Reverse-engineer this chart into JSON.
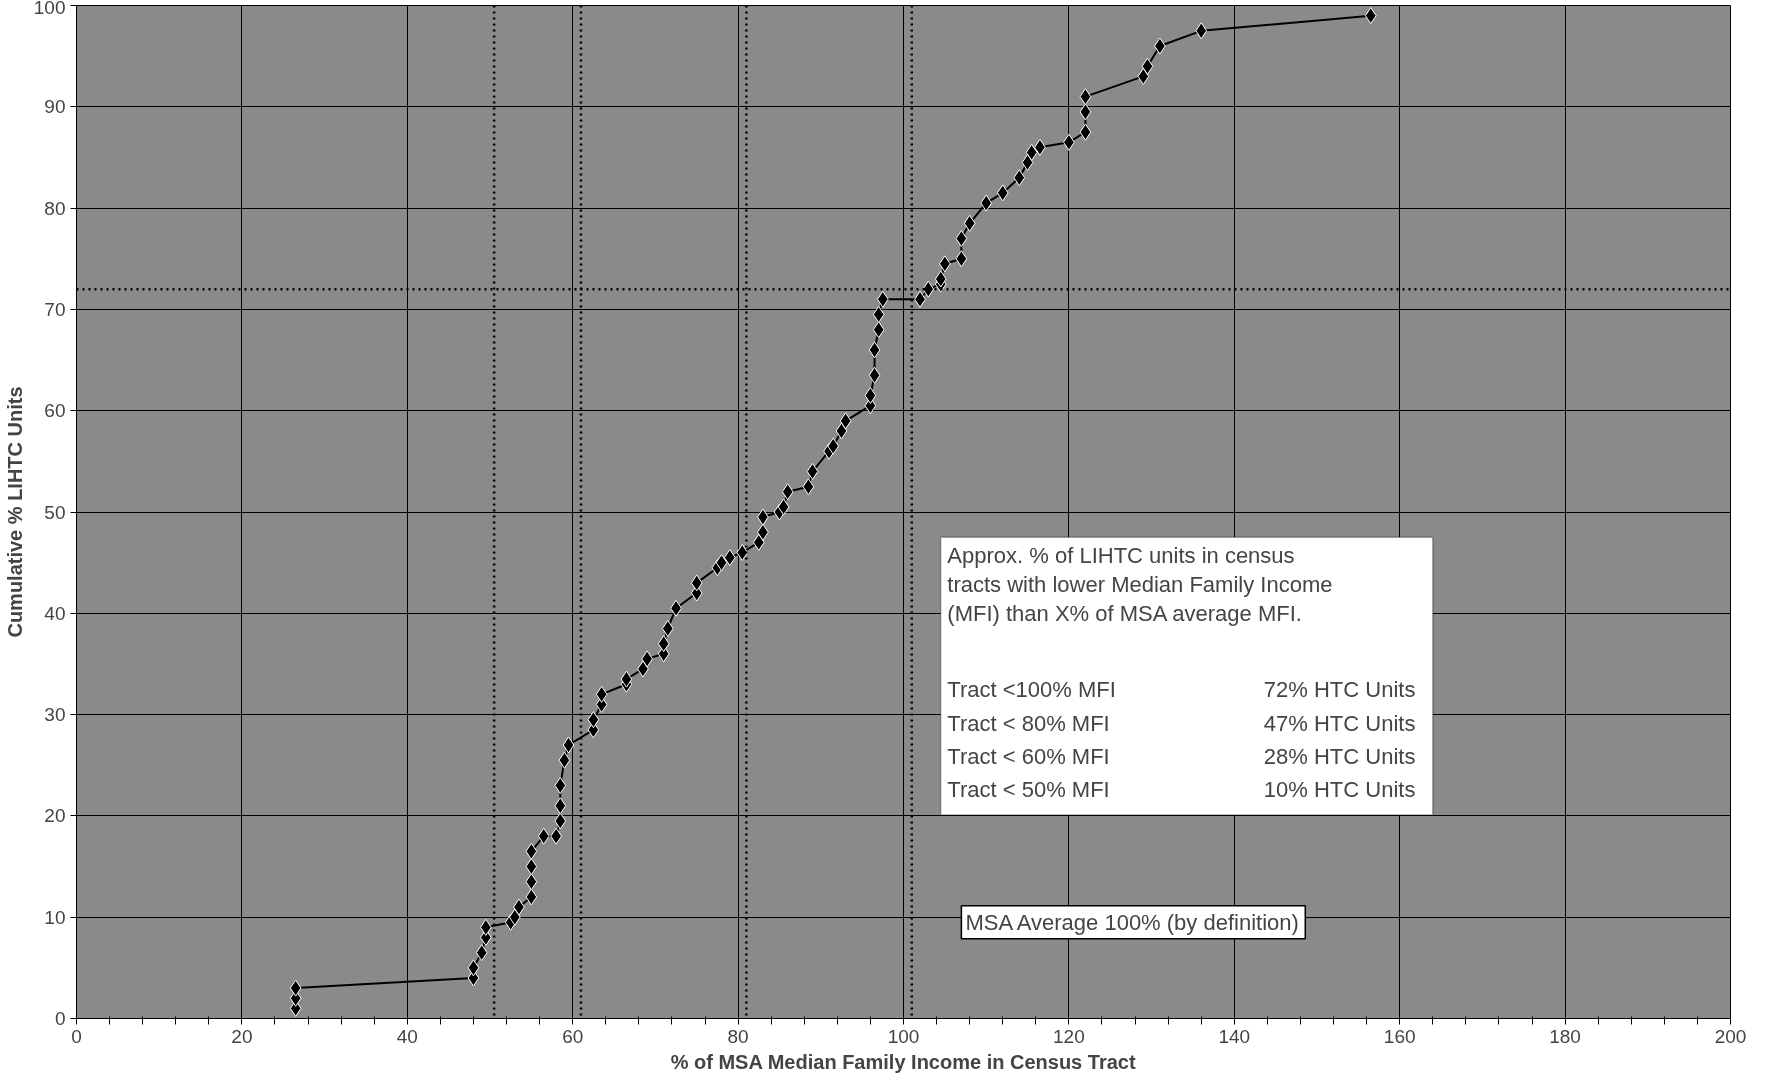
{
  "chart_data": {
    "type": "line",
    "xlabel": "% of MSA Median Family Income in Census Tract",
    "ylabel": "Cumulative % LIHTC Units",
    "x": [
      26.5,
      26.5,
      26.5,
      48,
      48,
      49,
      49.5,
      49.5,
      52.5,
      53,
      53.5,
      55,
      55,
      55,
      55,
      56.5,
      58,
      58.5,
      58.5,
      58.5,
      59,
      59.5,
      62.5,
      62.5,
      63.5,
      63.5,
      66.5,
      66.5,
      68.5,
      69,
      71,
      71,
      71.5,
      72.5,
      75,
      75,
      77.5,
      78,
      79,
      80.5,
      82.5,
      83,
      83,
      85,
      85.5,
      86,
      88.5,
      89,
      91,
      91.5,
      92.5,
      93,
      96,
      96,
      96.5,
      96.5,
      97,
      97,
      97.5,
      102,
      103,
      104.5,
      104.5,
      105,
      107,
      107,
      108,
      110,
      112,
      114,
      115,
      115.5,
      116.5,
      120,
      122,
      122,
      122,
      129,
      129.5,
      131,
      136,
      156.5
    ],
    "series": [
      {
        "color": "#000000",
        "values": [
          1,
          2,
          3,
          4,
          5,
          6.5,
          8,
          9,
          9.5,
          10,
          11,
          12,
          13.5,
          15,
          16.5,
          18,
          18,
          19.5,
          21,
          23,
          25.5,
          27,
          28.5,
          29.5,
          31,
          32,
          33,
          33.5,
          34.5,
          35.5,
          36,
          37,
          38.5,
          40.5,
          42,
          43,
          44.5,
          45,
          45.5,
          46,
          47,
          48,
          49.5,
          50,
          50.5,
          52,
          52.5,
          54,
          56,
          56.5,
          58,
          59,
          60.5,
          61.5,
          63.5,
          66,
          68,
          69.5,
          71,
          71,
          72,
          72.5,
          73,
          74.5,
          75,
          77,
          78.5,
          80.5,
          81.5,
          83,
          84.5,
          85.5,
          86,
          86.5,
          87.5,
          89.5,
          91,
          93,
          94,
          96,
          97.5,
          99
        ]
      }
    ],
    "xlim": [
      0,
      200
    ],
    "ylim": [
      0,
      100
    ],
    "xticks": [
      0,
      {
        "value": 4,
        "label": null
      },
      {
        "value": 8,
        "label": null
      },
      {
        "value": 12,
        "label": null
      },
      {
        "value": 16,
        "label": null
      },
      20,
      {
        "value": 24,
        "label": null
      },
      {
        "value": 28,
        "label": null
      },
      {
        "value": 32,
        "label": null
      },
      {
        "value": 36,
        "label": null
      },
      40,
      {
        "value": 44,
        "label": null
      },
      {
        "value": 48,
        "label": null
      },
      {
        "value": 52,
        "label": null
      },
      {
        "value": 56,
        "label": null
      },
      60,
      {
        "value": 64,
        "label": null
      },
      {
        "value": 68,
        "label": null
      },
      {
        "value": 72,
        "label": null
      },
      {
        "value": 76,
        "label": null
      },
      80,
      {
        "value": 84,
        "label": null
      },
      {
        "value": 88,
        "label": null
      },
      {
        "value": 92,
        "label": null
      },
      {
        "value": 96,
        "label": null
      },
      100,
      {
        "value": 104,
        "label": null
      },
      {
        "value": 108,
        "label": null
      },
      {
        "value": 112,
        "label": null
      },
      {
        "value": 116,
        "label": null
      },
      120,
      {
        "value": 124,
        "label": null
      },
      {
        "value": 128,
        "label": null
      },
      {
        "value": 132,
        "label": null
      },
      {
        "value": 136,
        "label": null
      },
      140,
      {
        "value": 144,
        "label": null
      },
      {
        "value": 148,
        "label": null
      },
      {
        "value": 152,
        "label": null
      },
      {
        "value": 156,
        "label": null
      },
      160,
      {
        "value": 164,
        "label": null
      },
      {
        "value": 168,
        "label": null
      },
      {
        "value": 172,
        "label": null
      },
      {
        "value": 176,
        "label": null
      },
      180,
      {
        "value": 184,
        "label": null
      },
      {
        "value": 188,
        "label": null
      },
      {
        "value": 192,
        "label": null
      },
      {
        "value": 196,
        "label": null
      },
      200
    ],
    "yticks": [
      0,
      10,
      20,
      30,
      40,
      50,
      60,
      70,
      80,
      90,
      100
    ],
    "grid": true,
    "marker": "diamond",
    "line_style": "solid",
    "ref_lines": [
      {
        "axis": "x",
        "value": 50.5,
        "color": "#000000",
        "line_style": "dotted"
      },
      {
        "axis": "x",
        "value": 61,
        "color": "#000000",
        "line_style": "dotted"
      },
      {
        "axis": "x",
        "value": 81,
        "color": "#000000",
        "line_style": "dotted"
      },
      {
        "axis": "x",
        "value": 101,
        "color": "#000000",
        "line_style": "dotted"
      },
      {
        "axis": "y",
        "value": 72,
        "color": "#000000",
        "line_style": "dotted"
      }
    ],
    "annotations": [
      "Approx. % of LIHTC units in census\ntracts with lower Median Family Income\n(MFI) than X% of MSA average MFI.",
      "Tract <100% MFI",
      "72% HTC Units",
      "Tract <  80% MFI",
      "47% HTC Units",
      "Tract <  60% MFI",
      "28% HTC Units",
      "Tract <  50% MFI",
      "10% HTC Units",
      "MSA Average 100% (by definition)"
    ]
  }
}
